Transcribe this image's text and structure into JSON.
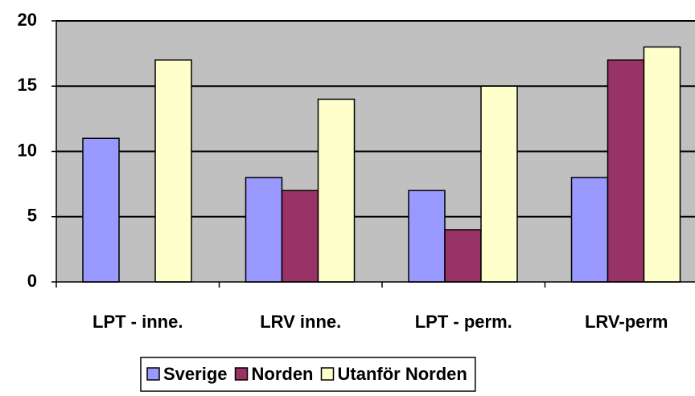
{
  "chart_data": {
    "type": "bar",
    "categories": [
      "LPT - inne.",
      "LRV inne.",
      "LPT - perm.",
      "LRV-perm"
    ],
    "series": [
      {
        "name": "Sverige",
        "color": "#9999ff",
        "values": [
          11,
          8,
          7,
          8
        ]
      },
      {
        "name": "Norden",
        "color": "#993366",
        "values": [
          0,
          7,
          4,
          17
        ]
      },
      {
        "name": "Utanför Norden",
        "color": "#ffffcc",
        "values": [
          17,
          14,
          15,
          18
        ]
      }
    ],
    "ylim": [
      0,
      20
    ],
    "yticks": [
      0,
      5,
      10,
      15,
      20
    ],
    "grid": true,
    "legend": "bottom"
  }
}
